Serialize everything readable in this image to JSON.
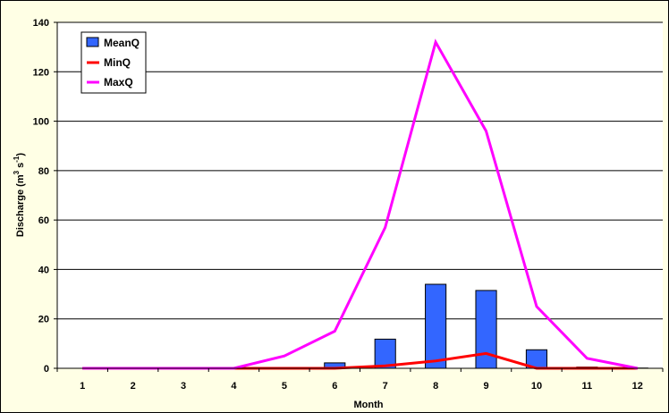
{
  "chart_data": {
    "type": "bar",
    "title": "",
    "xlabel": "Month",
    "ylabel": "Discharge (m3 s-1)",
    "ylabel_parts": {
      "main": "Discharge (m",
      "exp1": "3",
      "mid": " s",
      "exp2": "-1",
      "end": ")"
    },
    "categories": [
      "1",
      "2",
      "3",
      "4",
      "5",
      "6",
      "7",
      "8",
      "9",
      "10",
      "11",
      "12"
    ],
    "ylim": [
      0,
      140
    ],
    "yticks": [
      "0",
      "20",
      "40",
      "60",
      "80",
      "100",
      "120",
      "140"
    ],
    "grid": true,
    "legend_position": "top-left",
    "series": [
      {
        "name": "MeanQ",
        "kind": "bar",
        "color": "#3366FF",
        "values": [
          0,
          0,
          0,
          0,
          0.1,
          2.2,
          11.8,
          34,
          31.5,
          7.5,
          0.5,
          0.1
        ]
      },
      {
        "name": "MinQ",
        "kind": "line",
        "color": "#FF0000",
        "values": [
          0,
          0,
          0,
          0,
          0,
          0,
          1,
          3,
          6,
          0,
          0,
          0
        ]
      },
      {
        "name": "MaxQ",
        "kind": "line",
        "color": "#FF00FF",
        "values": [
          0,
          0,
          0,
          0,
          5,
          15,
          57,
          132,
          96,
          25,
          4,
          0
        ]
      }
    ]
  }
}
